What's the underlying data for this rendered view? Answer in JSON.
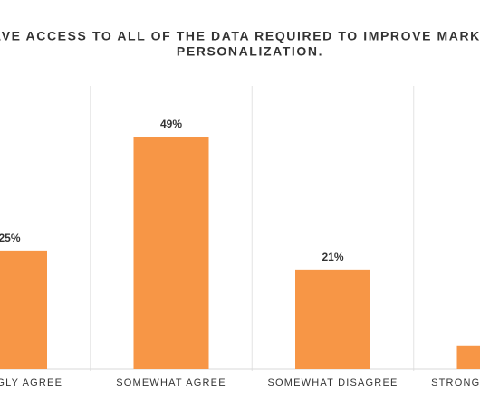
{
  "chart_data": {
    "type": "bar",
    "title": [
      "I HAVE ACCESS TO ALL OF THE DATA REQUIRED TO IMPROVE MARKETING",
      "PERSONALIZATION."
    ],
    "categories": [
      "STRONGLY  AGREE",
      "SOMEWHAT AGREE",
      "SOMEWHAT DISAGREE",
      "STRONGLY DISAGREE"
    ],
    "values": [
      25,
      49,
      21,
      5
    ],
    "value_labels": [
      "25%",
      "49%",
      "21%",
      null
    ],
    "color": "#f79646"
  }
}
